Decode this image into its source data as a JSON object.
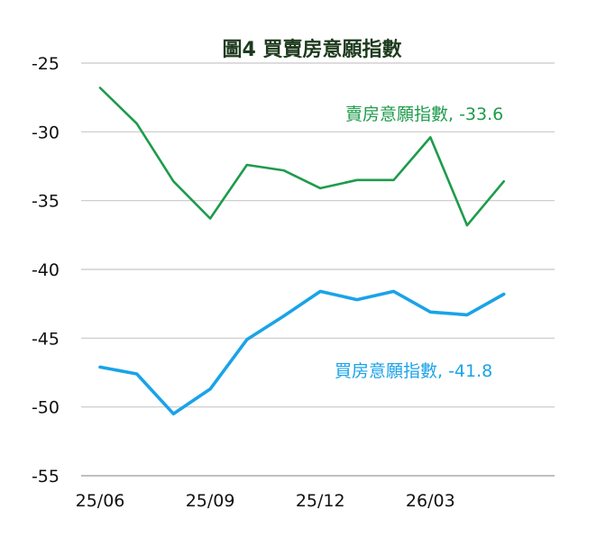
{
  "chart_data": {
    "type": "line",
    "title": "圖4  買賣房意願指數",
    "xlabel": "",
    "ylabel": "",
    "ylim": [
      -55,
      -25
    ],
    "yticks": [
      -25,
      -30,
      -35,
      -40,
      -45,
      -50,
      -55
    ],
    "x": [
      "25/06",
      "25/07",
      "25/08",
      "25/09",
      "25/10",
      "25/11",
      "25/12",
      "26/01",
      "26/02",
      "26/03",
      "26/04",
      "26/05"
    ],
    "xtick_labels": [
      "25/06",
      "25/09",
      "25/12",
      "26/03"
    ],
    "grid": true,
    "series": [
      {
        "key": "sell",
        "label": "賣房意願指數, -33.6",
        "color": "#1e9b4b",
        "values": [
          -26.8,
          -29.4,
          -33.6,
          -36.3,
          -32.4,
          -32.8,
          -34.1,
          -33.5,
          -33.5,
          -30.4,
          -36.8,
          -33.6
        ]
      },
      {
        "key": "buy",
        "label": "買房意願指數, -41.8",
        "color": "#1aa3e8",
        "values": [
          -47.1,
          -47.6,
          -50.5,
          -48.7,
          -45.1,
          -43.4,
          -41.6,
          -42.2,
          -41.6,
          -43.1,
          -43.3,
          -41.8
        ]
      }
    ]
  }
}
